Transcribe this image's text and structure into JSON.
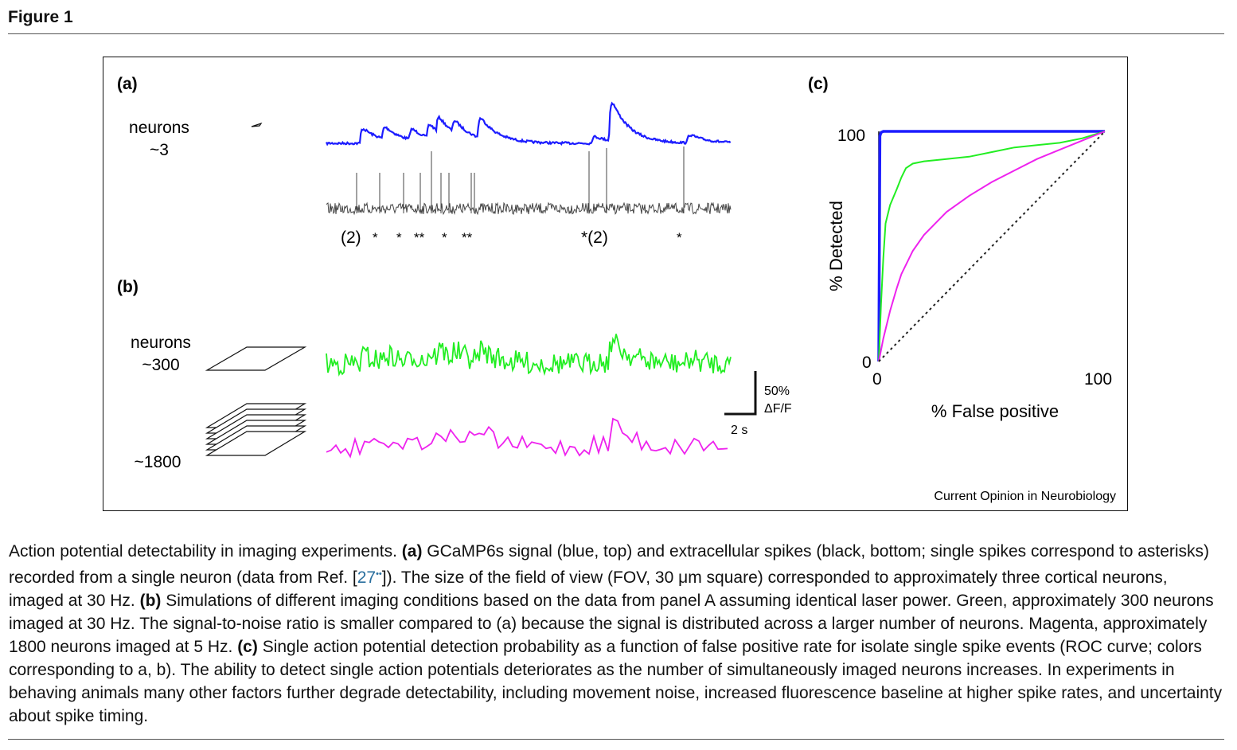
{
  "figure_title": "Figure 1",
  "panels": {
    "a": {
      "label": "(a)",
      "row_label_line1": "neurons",
      "row_label_line2": "~3",
      "annotations": [
        "(2)",
        "*",
        "*",
        "**",
        "*",
        "**",
        "*(2)",
        "*"
      ]
    },
    "b": {
      "label": "(b)",
      "row1_label_line1": "neurons",
      "row1_label_line2": "~300",
      "row2_label": "~1800"
    },
    "scale_bar": {
      "y_label_line1": "50%",
      "y_label_line2": "ΔF/F",
      "x_label": "2 s"
    },
    "c": {
      "label": "(c)"
    }
  },
  "chart_data": {
    "type": "line",
    "xlabel": "% False positive",
    "ylabel": "% Detected",
    "xlim": [
      0,
      100
    ],
    "ylim": [
      0,
      100
    ],
    "x_ticks": [
      "0",
      "100"
    ],
    "y_ticks": [
      "0",
      "100"
    ],
    "series": [
      {
        "color": "#1c1cff",
        "x": [
          0,
          0.5,
          1,
          2,
          5,
          10,
          30,
          60,
          100
        ],
        "y": [
          0,
          98,
          99.5,
          100,
          100,
          100,
          100,
          100,
          100
        ]
      },
      {
        "color": "#22ee22",
        "x": [
          0,
          1,
          2,
          3,
          5,
          8,
          10,
          12,
          15,
          20,
          30,
          40,
          50,
          60,
          70,
          80,
          90,
          100
        ],
        "y": [
          0,
          25,
          45,
          60,
          68,
          75,
          80,
          84,
          86,
          87,
          88,
          89,
          91,
          93,
          94,
          95,
          97,
          100
        ]
      },
      {
        "color": "#ee22ee",
        "x": [
          0,
          2,
          5,
          8,
          10,
          15,
          20,
          25,
          30,
          40,
          50,
          60,
          70,
          80,
          90,
          100
        ],
        "y": [
          0,
          10,
          22,
          32,
          38,
          48,
          55,
          60,
          65,
          72,
          78,
          83,
          88,
          92,
          96,
          100
        ]
      },
      {
        "color": "#222222",
        "x": [
          0,
          100
        ],
        "y": [
          0,
          100
        ]
      }
    ]
  },
  "credit": "Current Opinion in Neurobiology",
  "caption": {
    "p1": "Action potential detectability in imaging experiments. ",
    "a": "(a)",
    "p2": " GCaMP6s signal (blue, top) and extracellular spikes (black, bottom; single spikes correspond to asterisks) recorded from a single neuron (data from Ref. [",
    "ref": "27",
    "ref_marks": "••",
    "p3": "]). The size of the field of view (FOV, 30 μm square) corresponded to approximately three cortical neurons, imaged at 30 Hz. ",
    "b": "(b)",
    "p4": " Simulations of different imaging conditions based on the data from panel A assuming identical laser power. Green, approximately 300 neurons imaged at 30 Hz. The signal-to-noise ratio is smaller compared to (a) because the signal is distributed across a larger number of neurons. Magenta, approximately 1800 neurons imaged at 5 Hz. ",
    "c": "(c)",
    "p5": " Single action potential detection probability as a function of false positive rate for isolate single spike events (ROC curve; colors corresponding to a, b). The ability to detect single action potentials deteriorates as the number of simultaneously imaged neurons increases. In experiments in behaving animals many other factors further degrade detectability, including movement noise, increased fluorescence baseline at higher spike rates, and uncertainty about spike timing."
  }
}
